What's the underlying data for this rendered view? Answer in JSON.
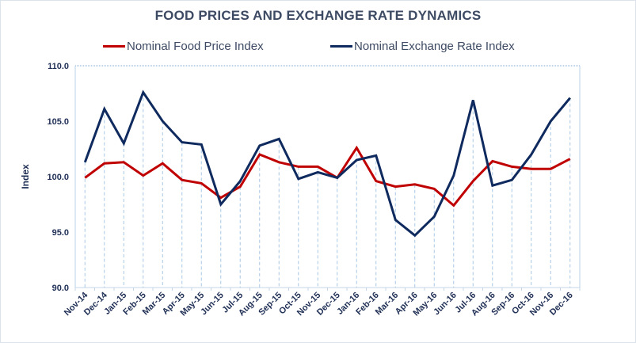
{
  "chart_data": {
    "type": "line",
    "title": "FOOD PRICES AND  EXCHANGE RATE DYNAMICS",
    "xlabel": "",
    "ylabel": "Index",
    "ylim": [
      90,
      110
    ],
    "yticks": [
      "90.0",
      "95.0",
      "100.0",
      "105.0",
      "110.0"
    ],
    "ytick_values": [
      90,
      95,
      100,
      105,
      110
    ],
    "grid": false,
    "legend_position": "top",
    "categories": [
      "Nov-14",
      "Dec-14",
      "Jan-15",
      "Feb-15",
      "Mar-15",
      "Apr-15",
      "May-15",
      "Jun-15",
      "Jul-15",
      "Aug-15",
      "Sep-15",
      "Oct-15",
      "Nov-15",
      "Dec-15",
      "Jan-16",
      "Feb-16",
      "Mar-16",
      "Apr-16",
      "May-16",
      "Jun-16",
      "Jul-16",
      "Aug-16",
      "Sep-16",
      "Oct-16",
      "Nov-16",
      "Dec-16"
    ],
    "series": [
      {
        "name": "Nominal Food Price Index",
        "color": "#c00000",
        "values": [
          99.9,
          101.2,
          101.3,
          100.1,
          101.2,
          99.7,
          99.4,
          98.1,
          99.1,
          102.0,
          101.3,
          100.9,
          100.9,
          99.9,
          102.6,
          99.6,
          99.1,
          99.3,
          98.9,
          97.4,
          99.6,
          101.4,
          100.9,
          100.7,
          100.7,
          101.6
        ]
      },
      {
        "name": "Nominal Exchange Rate Index",
        "color": "#0f2a5e",
        "values": [
          101.3,
          106.1,
          103.0,
          107.6,
          105.0,
          103.1,
          102.9,
          97.5,
          99.6,
          102.8,
          103.4,
          99.8,
          100.4,
          99.9,
          101.5,
          101.9,
          96.1,
          94.7,
          96.4,
          100.1,
          106.9,
          99.2,
          99.7,
          102.0,
          105.0,
          107.1
        ]
      }
    ]
  }
}
